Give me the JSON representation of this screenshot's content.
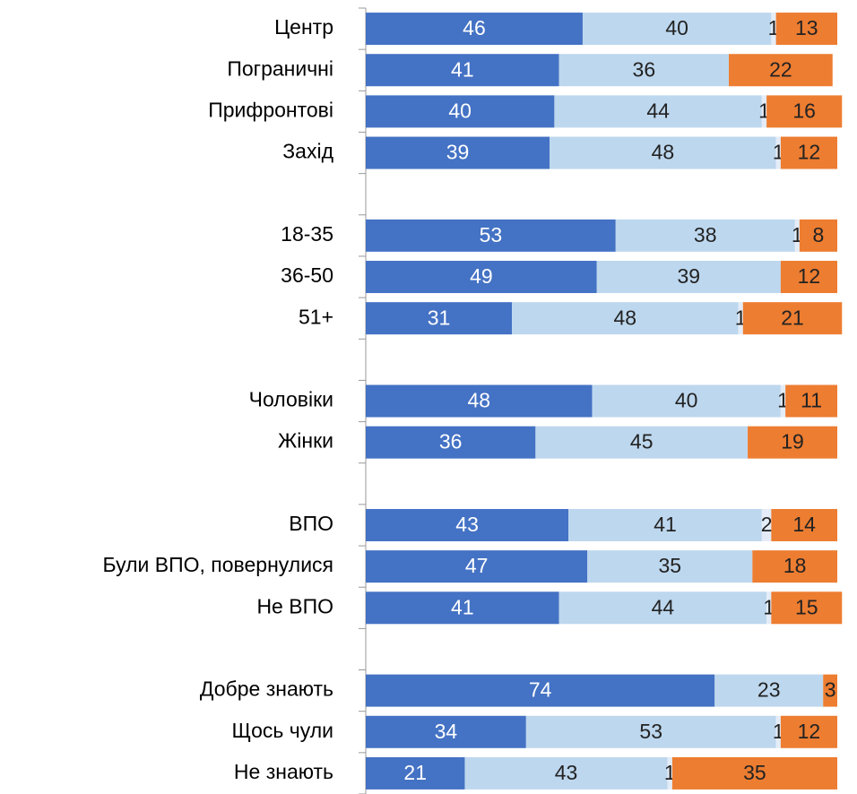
{
  "chart_data": {
    "type": "stacked-bar",
    "orientation": "horizontal",
    "categories": [
      "Центр",
      "Пограничні",
      "Прифронтові",
      "Захід",
      null,
      "18-35",
      "36-50",
      "51+",
      null,
      "Чоловіки",
      "Жінки",
      null,
      "ВПО",
      "Були ВПО, повернулися",
      "Не ВПО",
      null,
      "Добре знають",
      "Щось чули",
      "Не знають"
    ],
    "xlim": [
      0,
      100
    ],
    "series": [
      {
        "color": "#4472c4",
        "values": [
          46,
          41,
          40,
          39,
          null,
          53,
          49,
          31,
          null,
          48,
          36,
          null,
          43,
          47,
          41,
          null,
          74,
          34,
          21
        ]
      },
      {
        "color": "#bdd7ee",
        "values": [
          40,
          36,
          44,
          48,
          null,
          38,
          39,
          48,
          null,
          40,
          45,
          null,
          41,
          35,
          44,
          null,
          23,
          53,
          43
        ]
      },
      {
        "color": "#e3ecf7",
        "values": [
          1,
          null,
          1,
          1,
          null,
          1,
          null,
          1,
          null,
          1,
          null,
          null,
          2,
          null,
          1,
          null,
          null,
          1,
          1
        ]
      },
      {
        "color": "#ed7d31",
        "values": [
          13,
          22,
          16,
          12,
          null,
          8,
          12,
          21,
          null,
          11,
          19,
          null,
          14,
          18,
          15,
          null,
          3,
          12,
          35
        ]
      }
    ]
  }
}
